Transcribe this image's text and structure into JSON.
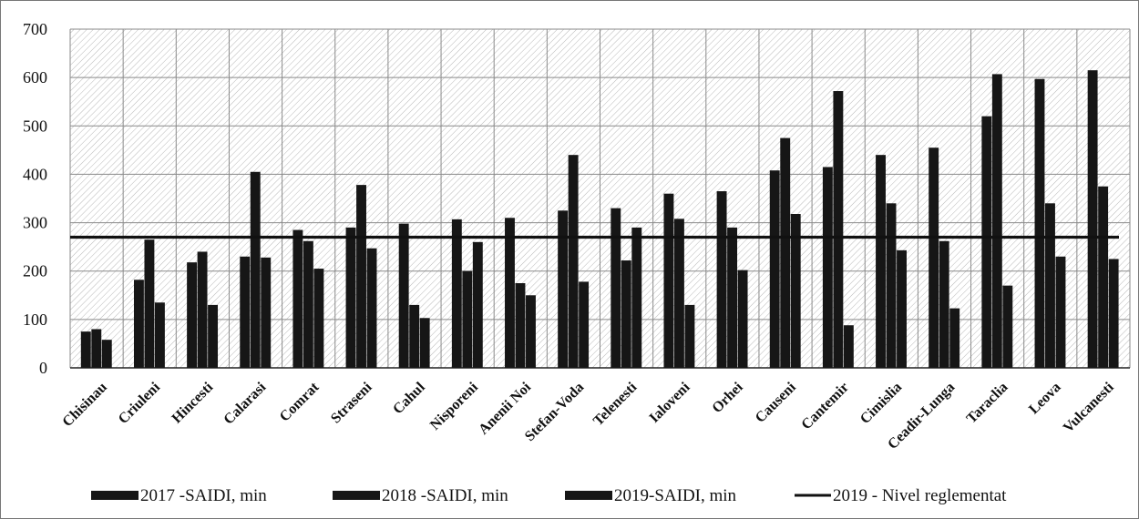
{
  "chart_data": {
    "type": "bar",
    "categories": [
      "Chisinau",
      "Criuleni",
      "Hincesti",
      "Calarasi",
      "Comrat",
      "Straseni",
      "Cahul",
      "Nisporeni",
      "Anenii Noi",
      "Stefan-Voda",
      "Telenesti",
      "Ialoveni",
      "Orhei",
      "Causeni",
      "Cantemir",
      "Cimislia",
      "Ceadir-Lunga",
      "Taraclia",
      "Leova",
      "Vulcanesti"
    ],
    "series": [
      {
        "name": "2017 -SAIDI, min",
        "values": [
          75,
          182,
          218,
          230,
          285,
          290,
          298,
          307,
          310,
          325,
          330,
          360,
          365,
          408,
          415,
          440,
          455,
          520,
          597,
          615
        ]
      },
      {
        "name": "2018 -SAIDI, min",
        "values": [
          80,
          265,
          240,
          405,
          262,
          378,
          130,
          200,
          175,
          440,
          222,
          308,
          290,
          475,
          572,
          340,
          262,
          607,
          340,
          375
        ]
      },
      {
        "name": "2019-SAIDI, min",
        "values": [
          58,
          135,
          130,
          228,
          205,
          247,
          103,
          260,
          150,
          178,
          290,
          130,
          202,
          318,
          88,
          243,
          123,
          170,
          230,
          225
        ]
      },
      {
        "name": "2019 - Nivel reglementat",
        "kind": "line",
        "value": 270
      }
    ],
    "ylim": [
      0,
      700
    ],
    "yticks": [
      "0",
      "100",
      "200",
      "300",
      "400",
      "500",
      "600",
      "700"
    ],
    "grid": true,
    "legend_position": "bottom",
    "colors": {
      "bars": "#161616",
      "line": "#111111",
      "grid": "#8a8a8a",
      "background": "#ffffff"
    }
  }
}
